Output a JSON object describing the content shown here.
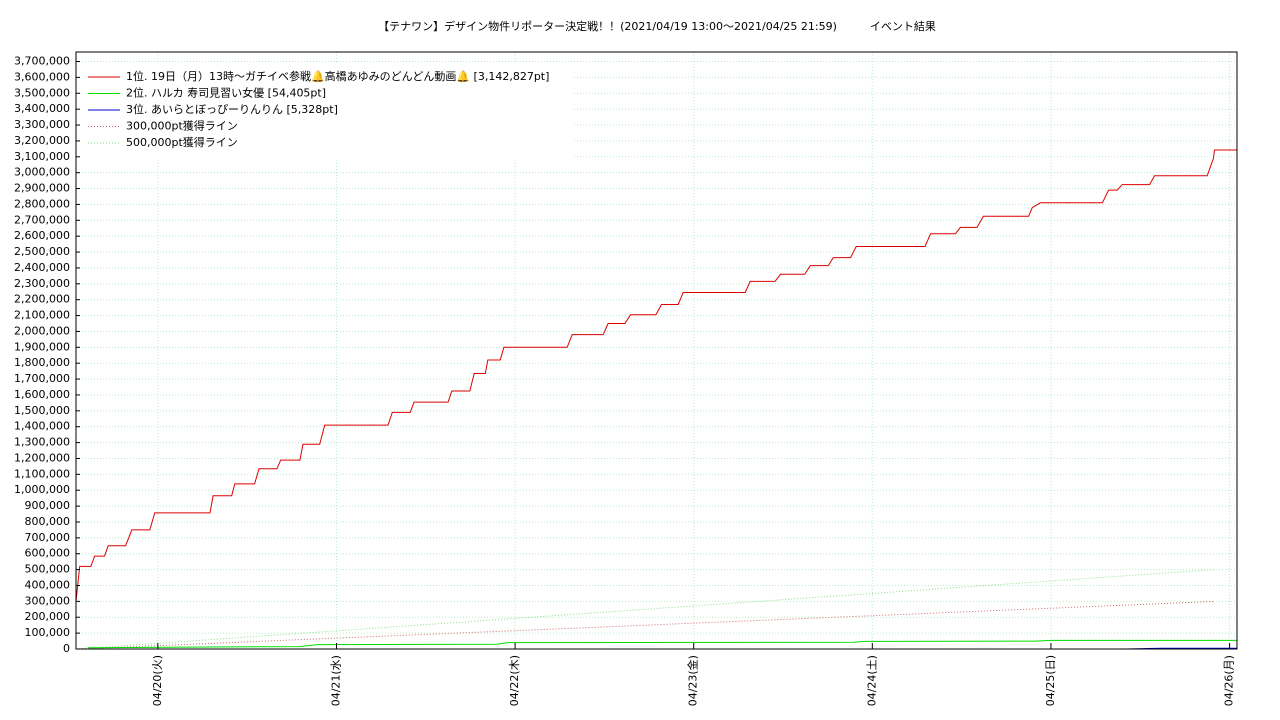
{
  "chart_data": {
    "type": "line",
    "title": "【テナワン】デザイン物件リポーター決定戦！！(2021/04/19 13:00〜2021/04/25 21:59)　　　イベント結果",
    "xlim": [
      "04/19 13:00",
      "04/26 01:00"
    ],
    "xticks": [
      {
        "value": "04/20 00:00",
        "label": "04/20(火)"
      },
      {
        "value": "04/21 00:00",
        "label": "04/21(水)"
      },
      {
        "value": "04/22 00:00",
        "label": "04/22(木)"
      },
      {
        "value": "04/23 00:00",
        "label": "04/23(金)"
      },
      {
        "value": "04/24 00:00",
        "label": "04/24(土)"
      },
      {
        "value": "04/25 00:00",
        "label": "04/25(日)"
      },
      {
        "value": "04/26 00:00",
        "label": "04/26(月)"
      }
    ],
    "ylim": [
      0,
      3760000
    ],
    "yticks": [
      0,
      {
        "value": 100000,
        "label": "100,000"
      },
      {
        "value": 200000,
        "label": "200,000"
      },
      {
        "value": 300000,
        "label": "300,000"
      },
      {
        "value": 400000,
        "label": "400,000"
      },
      {
        "value": 500000,
        "label": "500,000"
      },
      {
        "value": 600000,
        "label": "600,000"
      },
      {
        "value": 700000,
        "label": "700,000"
      },
      {
        "value": 800000,
        "label": "800,000"
      },
      {
        "value": 900000,
        "label": "900,000"
      },
      {
        "value": 1000000,
        "label": "1,000,000"
      },
      {
        "value": 1100000,
        "label": "1,100,000"
      },
      {
        "value": 1200000,
        "label": "1,200,000"
      },
      {
        "value": 1300000,
        "label": "1,300,000"
      },
      {
        "value": 1400000,
        "label": "1,400,000"
      },
      {
        "value": 1500000,
        "label": "1,500,000"
      },
      {
        "value": 1600000,
        "label": "1,600,000"
      },
      {
        "value": 1700000,
        "label": "1,700,000"
      },
      {
        "value": 1800000,
        "label": "1,800,000"
      },
      {
        "value": 1900000,
        "label": "1,900,000"
      },
      {
        "value": 2000000,
        "label": "2,000,000"
      },
      {
        "value": 2100000,
        "label": "2,100,000"
      },
      {
        "value": 2200000,
        "label": "2,200,000"
      },
      {
        "value": 2300000,
        "label": "2,300,000"
      },
      {
        "value": 2400000,
        "label": "2,400,000"
      },
      {
        "value": 2500000,
        "label": "2,500,000"
      },
      {
        "value": 2600000,
        "label": "2,600,000"
      },
      {
        "value": 2700000,
        "label": "2,700,000"
      },
      {
        "value": 2800000,
        "label": "2,800,000"
      },
      {
        "value": 2900000,
        "label": "2,900,000"
      },
      {
        "value": 3000000,
        "label": "3,000,000"
      },
      {
        "value": 3100000,
        "label": "3,100,000"
      },
      {
        "value": 3200000,
        "label": "3,200,000"
      },
      {
        "value": 3300000,
        "label": "3,300,000"
      },
      {
        "value": 3400000,
        "label": "3,400,000"
      },
      {
        "value": 3500000,
        "label": "3,500,000"
      },
      {
        "value": 3600000,
        "label": "3,600,000"
      },
      {
        "value": 3700000,
        "label": "3,700,000"
      }
    ],
    "grid": true,
    "legend": "upper left",
    "series": [
      {
        "name": "1位. 19日（月）13時〜ガチイベ参戦🔔高橋あゆみのどんどん動画🔔 [3,142,827pt]",
        "color": "#dd0000",
        "linestyle": "solid",
        "x": [
          "04/19 13:00",
          "04/19 13:30",
          "04/19 15:00",
          "04/19 15:30",
          "04/19 16:50",
          "04/19 17:20",
          "04/19 19:40",
          "04/19 20:30",
          "04/19 22:55",
          "04/19 23:35",
          "04/20 07:00",
          "04/20 07:25",
          "04/20 09:55",
          "04/20 10:20",
          "04/20 13:00",
          "04/20 13:35",
          "04/20 16:00",
          "04/20 16:30",
          "04/20 19:05",
          "04/20 19:30",
          "04/20 21:45",
          "04/20 22:25",
          "04/21 06:55",
          "04/21 07:30",
          "04/21 09:55",
          "04/21 10:25",
          "04/21 15:00",
          "04/21 15:30",
          "04/21 17:55",
          "04/21 18:30",
          "04/21 20:00",
          "04/21 20:20",
          "04/21 22:00",
          "04/21 22:30",
          "04/22 07:00",
          "04/22 07:40",
          "04/22 11:50",
          "04/22 12:30",
          "04/22 14:45",
          "04/22 15:30",
          "04/22 18:55",
          "04/22 19:40",
          "04/22 21:55",
          "04/22 22:35",
          "04/23 06:55",
          "04/23 07:35",
          "04/23 10:55",
          "04/23 11:40",
          "04/23 14:55",
          "04/23 15:40",
          "04/23 18:05",
          "04/23 18:45",
          "04/23 21:05",
          "04/23 21:50",
          "04/24 07:05",
          "04/24 07:50",
          "04/24 11:10",
          "04/24 11:50",
          "04/24 14:05",
          "04/24 14:55",
          "04/24 21:00",
          "04/24 21:30",
          "04/24 22:35",
          "04/25 06:55",
          "04/25 07:45",
          "04/25 08:55",
          "04/25 09:35",
          "04/25 13:15",
          "04/25 13:55",
          "04/25 21:00",
          "04/25 21:50",
          "04/25 21:59",
          "04/26 01:00"
        ],
        "values": [
          300000,
          520000,
          520000,
          585000,
          585000,
          650000,
          650000,
          750000,
          750000,
          857000,
          857000,
          965000,
          965000,
          1040000,
          1040000,
          1135000,
          1135000,
          1190000,
          1190000,
          1290000,
          1290000,
          1410000,
          1410000,
          1490000,
          1490000,
          1555000,
          1555000,
          1625000,
          1625000,
          1735000,
          1735000,
          1820000,
          1820000,
          1900000,
          1900000,
          1980000,
          1980000,
          2050000,
          2050000,
          2105000,
          2105000,
          2170000,
          2170000,
          2245000,
          2245000,
          2315000,
          2315000,
          2360000,
          2360000,
          2415000,
          2415000,
          2465000,
          2465000,
          2535000,
          2535000,
          2615000,
          2615000,
          2655000,
          2655000,
          2725000,
          2725000,
          2780000,
          2810000,
          2810000,
          2890000,
          2890000,
          2925000,
          2925000,
          2980000,
          2980000,
          3090000,
          3142827,
          3142827
        ]
      },
      {
        "name": "2位. ハルカ 寿司見習い女優 [54,405pt]",
        "color": "#00dd00",
        "linestyle": "solid",
        "x": [
          "04/19 14:35",
          "04/20 04:00",
          "04/20 19:00",
          "04/20 20:00",
          "04/20 21:30",
          "04/21 21:30",
          "04/21 23:00",
          "04/23 21:30",
          "04/23 23:00",
          "04/24 22:00",
          "04/25 00:00",
          "04/25 21:59",
          "04/26 01:00"
        ],
        "values": [
          8000,
          12000,
          15000,
          20000,
          28000,
          30000,
          40000,
          42000,
          48000,
          50000,
          54000,
          54405,
          54405
        ]
      },
      {
        "name": "3位. あいらとぼっぴーりんりん [5,328pt]",
        "color": "#0000cc",
        "linestyle": "solid",
        "x": [
          "04/25 10:00",
          "04/25 13:00",
          "04/25 15:00",
          "04/25 21:59",
          "04/26 01:00"
        ],
        "values": [
          0,
          3000,
          5000,
          5328,
          5328
        ]
      },
      {
        "name": "300,000pt獲得ライン",
        "color": "#cc6666",
        "linestyle": "dotted",
        "x": [
          "04/19 13:00",
          "04/25 21:59"
        ],
        "values": [
          0,
          300000
        ]
      },
      {
        "name": "500,000pt獲得ライン",
        "color": "#88dd88",
        "linestyle": "dotted",
        "x": [
          "04/19 13:00",
          "04/25 21:59"
        ],
        "values": [
          0,
          500000
        ]
      }
    ]
  }
}
